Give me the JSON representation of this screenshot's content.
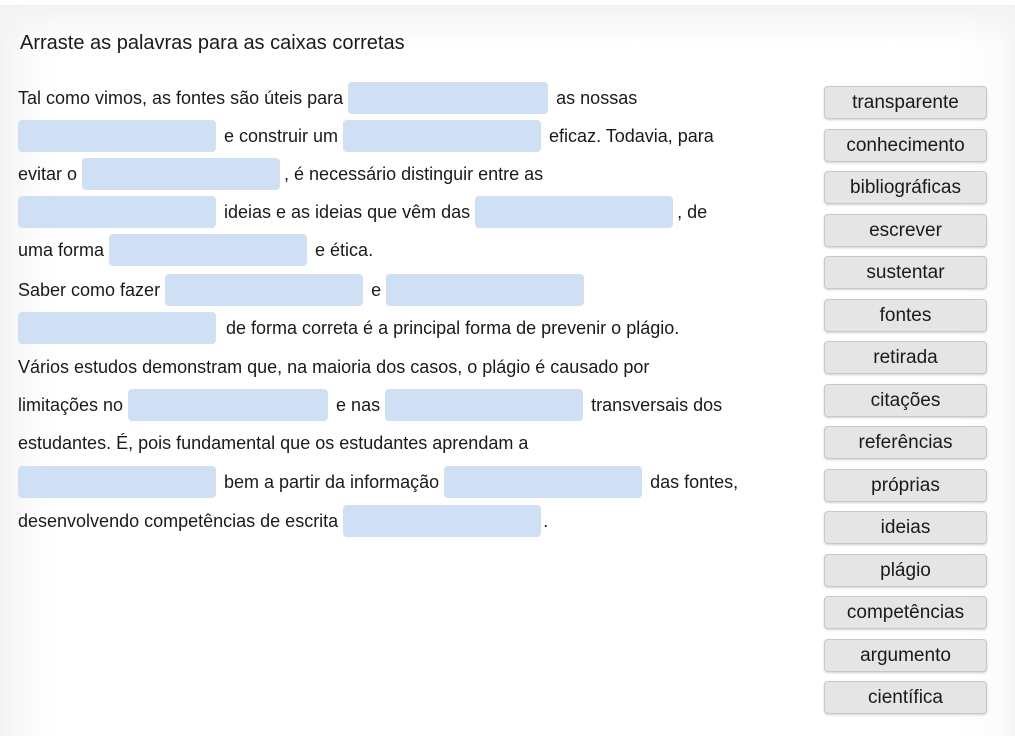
{
  "instructions": "Arraste as palavras para as caixas corretas",
  "text": {
    "l1_a": "Tal como vimos, as fontes são úteis para",
    "l1_b": "as nossas",
    "l2_a": "e construir um",
    "l2_b": "eficaz. Todavia, para",
    "l3_a": "evitar o",
    "l3_b": ", é necessário distinguir entre as",
    "l4_a": "ideias e as ideias que vêm das",
    "l4_b": ", de",
    "l5_a": "uma forma",
    "l5_b": "e ética.",
    "l6_a": "Saber como fazer",
    "l6_b": "e",
    "l7_a": "de forma correta é a principal forma de prevenir o plágio.",
    "l8": "Vários estudos demonstram que, na maioria dos casos, o plágio é causado por",
    "l9_a": "limitações no",
    "l9_b": "e nas",
    "l9_c": "transversais dos",
    "l10": "estudantes. É, pois fundamental que os estudantes aprendam a",
    "l11_a": "bem a partir da informação",
    "l11_b": "das fontes,",
    "l12_a": "desenvolvendo competências de escrita",
    "l12_b": "."
  },
  "word_bank": [
    "transparente",
    "conhecimento",
    "bibliográficas",
    "escrever",
    "sustentar",
    "fontes",
    "retirada",
    "citações",
    "referências",
    "próprias",
    "ideias",
    "plágio",
    "competências",
    "argumento",
    "científica"
  ],
  "colors": {
    "drop_zone": "#cfe0f4",
    "word_tile": "#e5e5e5",
    "text": "#1a1a1a"
  }
}
